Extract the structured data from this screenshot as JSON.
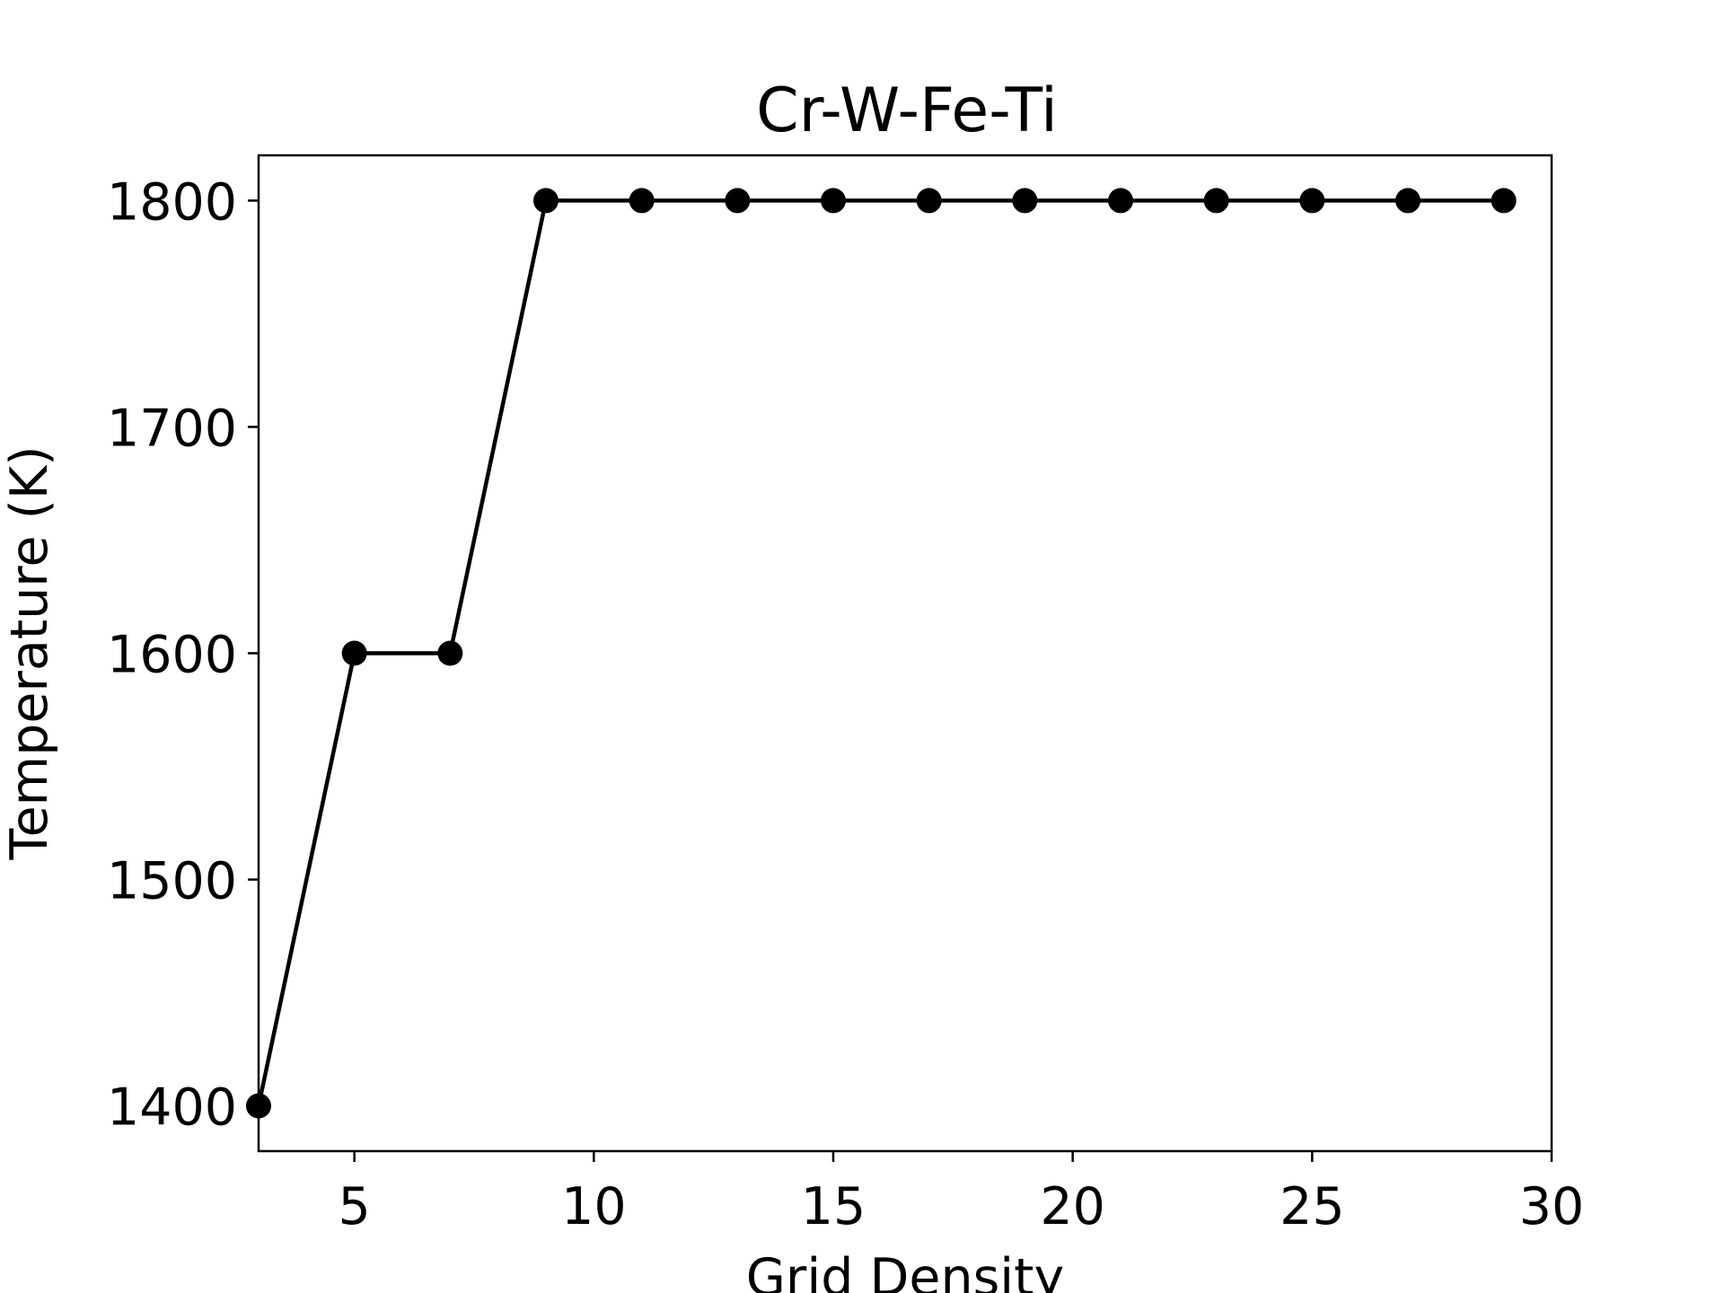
{
  "chart_data": {
    "type": "line",
    "title": "Cr-W-Fe-Ti",
    "xlabel": "Grid Density",
    "ylabel": "Temperature (K)",
    "xlim": [
      3,
      30
    ],
    "ylim": [
      1380,
      1820
    ],
    "xticks": [
      5,
      10,
      15,
      20,
      25,
      30
    ],
    "yticks": [
      1400,
      1500,
      1600,
      1700,
      1800
    ],
    "grid": false,
    "series": [
      {
        "color": "#000000",
        "marker": "circle",
        "x": [
          3,
          5,
          7,
          9,
          11,
          13,
          15,
          17,
          19,
          21,
          23,
          25,
          27,
          29
        ],
        "y": [
          1400,
          1600,
          1600,
          1800,
          1800,
          1800,
          1800,
          1800,
          1800,
          1800,
          1800,
          1800,
          1800,
          1800
        ]
      }
    ]
  }
}
